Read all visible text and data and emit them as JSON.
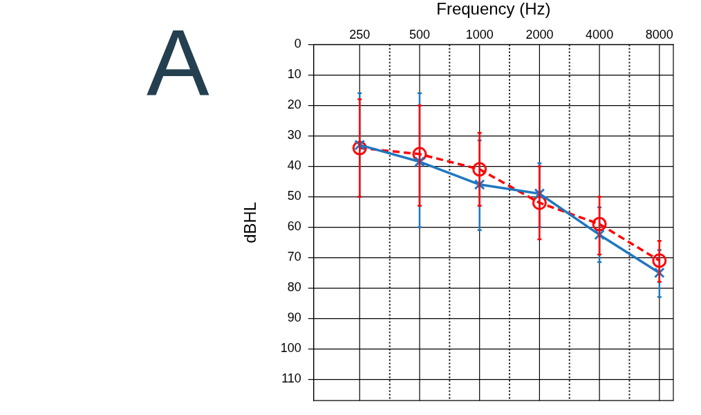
{
  "chart_data": {
    "type": "line",
    "xlabel": "Frequency (Hz)",
    "ylabel": "dBHL",
    "annotations": [
      "A"
    ],
    "log": "x",
    "x": [
      250,
      500,
      1000,
      2000,
      4000,
      8000
    ],
    "xlim": [
      147,
      9400
    ],
    "xticks": [
      250,
      {
        "value": 354,
        "label": null
      },
      500,
      {
        "value": 707,
        "label": null
      },
      1000,
      {
        "value": 1414,
        "label": null
      },
      2000,
      {
        "value": 2828,
        "label": null
      },
      4000,
      {
        "value": 5657,
        "label": null
      },
      8000
    ],
    "ylim": [
      117,
      0
    ],
    "yticks": [
      0,
      10,
      20,
      30,
      40,
      50,
      60,
      70,
      80,
      90,
      100,
      110
    ],
    "grid": true,
    "legend": false,
    "series": [
      {
        "color": "#1f77c0",
        "marker": "cross",
        "line_style": "solid",
        "values": [
          33,
          38.5,
          46,
          49,
          62.5,
          75
        ],
        "errors": [
          [
            16,
            50
          ],
          [
            16,
            60
          ],
          [
            31.5,
            61
          ],
          [
            39,
            60
          ],
          [
            53.5,
            71.5
          ],
          [
            67.5,
            83
          ]
        ]
      },
      {
        "color": "#ff0000",
        "marker": "circle",
        "line_style": "dashed",
        "values": [
          34,
          36,
          41,
          52,
          59,
          71
        ],
        "errors": [
          [
            18,
            50
          ],
          [
            20,
            53
          ],
          [
            29,
            53
          ],
          [
            40,
            64
          ],
          [
            50,
            69
          ],
          [
            64.5,
            78
          ]
        ]
      }
    ]
  }
}
